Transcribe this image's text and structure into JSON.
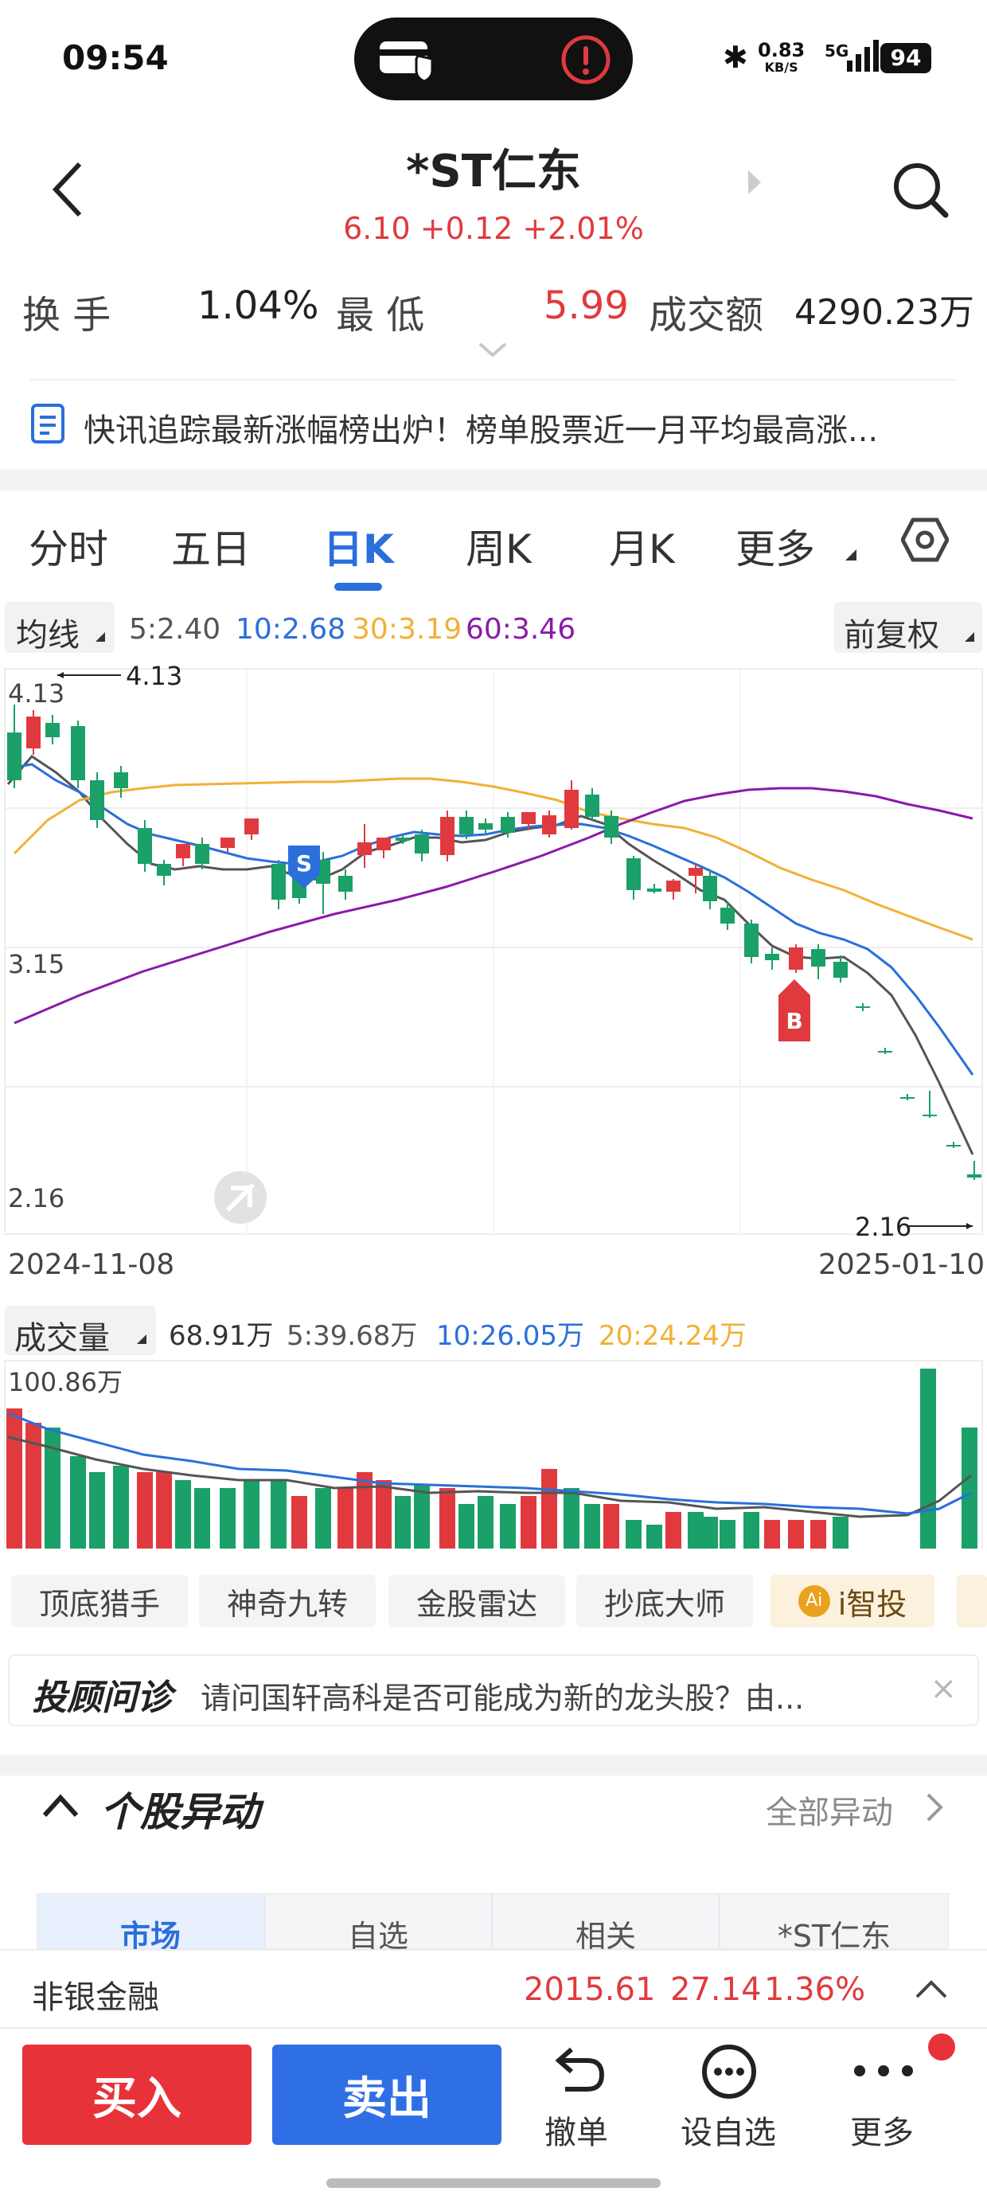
{
  "status_bar": {
    "time": "09:54",
    "network_speed": "0.83",
    "network_unit": "KB/S",
    "signal": "5G",
    "battery": "94"
  },
  "header": {
    "title": "*ST仁东",
    "price_line": "6.10 +0.12 +2.01%"
  },
  "stats": {
    "turnover_label": "换 手",
    "turnover_value": "1.04%",
    "low_label": "最 低",
    "low_value": "5.99",
    "amount_label": "成交额",
    "amount_value": "4290.23万"
  },
  "news_ticker": "快讯追踪最新涨幅榜出炉！榜单股票近一月平均最高涨...",
  "tabs": [
    "分时",
    "五日",
    "日K",
    "周K",
    "月K",
    "更多"
  ],
  "active_tab": "日K",
  "ma_bar": {
    "selector": "均线",
    "ma5": "5:2.40",
    "ma10": "10:2.68",
    "ma30": "30:3.19",
    "ma60": "60:3.46",
    "adjust": "前复权"
  },
  "kline": {
    "high_label": "4.13",
    "top_axis": "4.13",
    "mid_axis": "3.15",
    "bottom_axis": "2.16",
    "low_label": "2.16",
    "date_start": "2024-11-08",
    "date_end": "2025-01-10",
    "signal_s": "S",
    "signal_b": "B"
  },
  "volume_bar": {
    "selector": "成交量",
    "vol": "68.91万",
    "ma5": "5:39.68万",
    "ma10": "10:26.05万",
    "ma20": "20:24.24万",
    "axis_top": "100.86万"
  },
  "tool_pills": [
    "顶底猎手",
    "神奇九转",
    "金股雷达",
    "抄底大师",
    "i智投"
  ],
  "advisor": {
    "brand": "投顾问诊",
    "text": "请问国轩高科是否可能成为新的龙头股？由..."
  },
  "abnormal": {
    "title": "个股异动",
    "all_link": "全部异动",
    "subtabs": [
      "市场",
      "自选",
      "相关",
      "*ST仁东"
    ]
  },
  "index_row": {
    "name": "非银金融",
    "value": "2015.61",
    "change": "27.14",
    "pct": "1.36%"
  },
  "bottom_bar": {
    "buy": "买入",
    "sell": "卖出",
    "cancel": "撤单",
    "watch": "设自选",
    "more": "更多"
  },
  "colors": {
    "up": "#e03a3e",
    "down": "#1aa068",
    "ma5": "#555555",
    "ma10": "#2a6fdb",
    "ma30": "#f2b036",
    "ma60": "#8a1aa8"
  }
}
